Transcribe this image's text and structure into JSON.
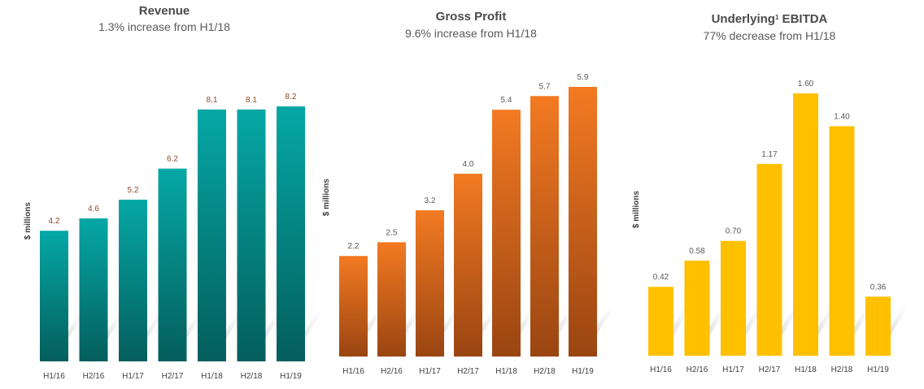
{
  "charts": [
    {
      "title": "Revenue",
      "title_sup": "",
      "subtitle": "1.3% increase from H1/18",
      "ylabel": "$ millions",
      "label_color": "#8a4a2a",
      "color_top": "#05a8a6",
      "color_bottom": "#045e5c"
    },
    {
      "title": "Gross Profit",
      "title_sup": "",
      "subtitle": "9.6% increase from H1/18",
      "ylabel": "$ millions",
      "label_color": "#595959",
      "color_top": "#f37a22",
      "color_bottom": "#9a4512"
    },
    {
      "title": "Underlying",
      "title_sup": "1",
      "title_rest": " EBITDA",
      "subtitle": "77% decrease from  H1/18",
      "ylabel": "$ millions",
      "label_color": "#595959",
      "color_top": "#ffc000",
      "color_bottom": "#ffc000"
    }
  ],
  "chart_data": [
    {
      "type": "bar",
      "title": "Revenue",
      "subtitle": "1.3% increase from H1/18",
      "ylabel": "$ millions",
      "categories": [
        "H1/16",
        "H2/16",
        "H1/17",
        "H2/17",
        "H1/18",
        "H2/18",
        "H1/19"
      ],
      "values": [
        4.2,
        4.6,
        5.2,
        6.2,
        8.1,
        8.1,
        8.2
      ],
      "value_labels": [
        "4.2",
        "4.6",
        "5.2",
        "6.2",
        "8.1",
        "8.1",
        "8.2"
      ],
      "ylim": [
        0,
        9
      ]
    },
    {
      "type": "bar",
      "title": "Gross Profit",
      "subtitle": "9.6% increase from H1/18",
      "ylabel": "$ millions",
      "categories": [
        "H1/16",
        "H2/16",
        "H1/17",
        "H2/17",
        "H1/18",
        "H2/18",
        "H1/19"
      ],
      "values": [
        2.2,
        2.5,
        3.2,
        4.0,
        5.4,
        5.7,
        5.9
      ],
      "value_labels": [
        "2.2",
        "2.5",
        "3.2",
        "4.0",
        "5.4",
        "5.7",
        "5.9"
      ],
      "ylim": [
        0,
        6
      ]
    },
    {
      "type": "bar",
      "title": "Underlying¹ EBITDA",
      "subtitle": "77% decrease from  H1/18",
      "ylabel": "$ millions",
      "categories": [
        "H1/16",
        "H2/16",
        "H1/17",
        "H2/17",
        "H1/18",
        "H2/18",
        "H1/19"
      ],
      "values": [
        0.42,
        0.58,
        0.7,
        1.17,
        1.6,
        1.4,
        0.36
      ],
      "value_labels": [
        "0.42",
        "0.58",
        "0.70",
        "1.17",
        "1.60",
        "1.40",
        "0.36"
      ],
      "ylim": [
        0,
        1.65
      ]
    }
  ]
}
